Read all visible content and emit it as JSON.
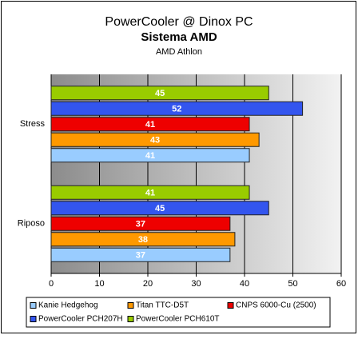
{
  "chart_data": {
    "type": "hbar",
    "title": "PowerCooler @ Dinox PC",
    "subtitle": "Sistema AMD",
    "subtitle_2": "AMD Athlon",
    "categories": [
      "Stress",
      "Riposo"
    ],
    "series": [
      {
        "name": "Kanie Hedgehog",
        "color": "#99ccff",
        "values": [
          41,
          37
        ]
      },
      {
        "name": "Titan TTC-D5T",
        "color": "#ff9900",
        "values": [
          43,
          38
        ]
      },
      {
        "name": "CNPS 6000-Cu (2500)",
        "color": "#ee0000",
        "values": [
          41,
          37
        ]
      },
      {
        "name": "PowerCooler PCH207H",
        "color": "#3355ee",
        "values": [
          52,
          45
        ]
      },
      {
        "name": "PowerCooler PCH610T",
        "color": "#99cc00",
        "values": [
          45,
          41
        ]
      }
    ],
    "xlim": [
      0,
      60
    ],
    "xticks": [
      0,
      10,
      20,
      30,
      40,
      50,
      60
    ],
    "grid": true
  }
}
